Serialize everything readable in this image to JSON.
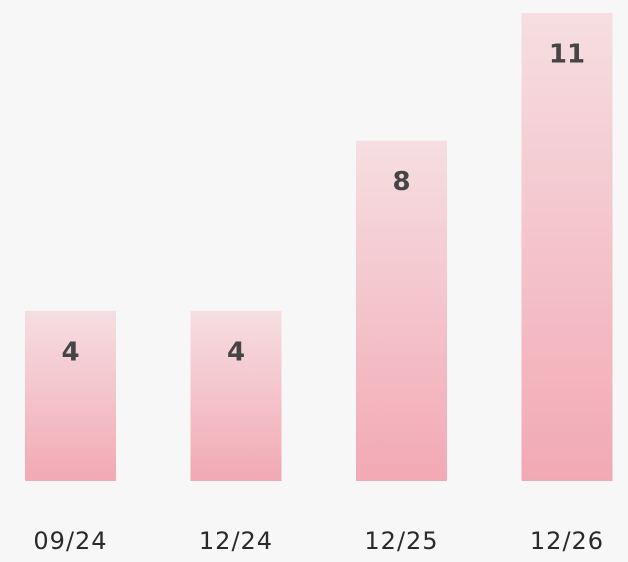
{
  "chart_data": {
    "type": "bar",
    "categories": [
      "09/24",
      "12/24",
      "12/25",
      "12/26"
    ],
    "values": [
      4,
      4,
      8,
      11
    ],
    "color": "#f2a9b4"
  }
}
